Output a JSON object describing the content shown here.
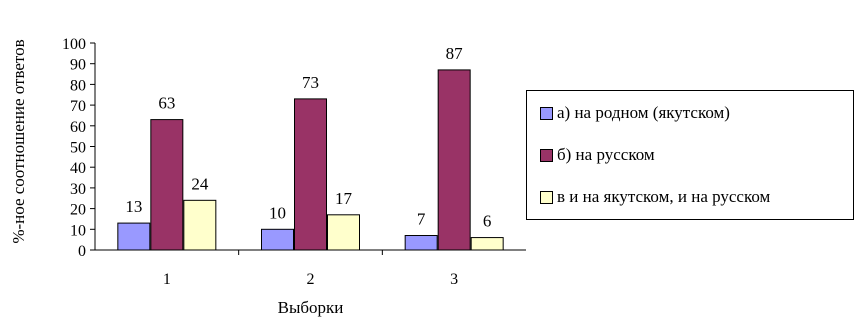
{
  "chart_data": {
    "type": "bar",
    "categories": [
      "1",
      "2",
      "3"
    ],
    "series": [
      {
        "name": "а) на родном (якутском)",
        "values": [
          13,
          10,
          7
        ],
        "color": "#9999ff"
      },
      {
        "name": "б) на русском",
        "values": [
          63,
          73,
          87
        ],
        "color": "#993366"
      },
      {
        "name": "в и на якутском, и на русском",
        "values": [
          24,
          17,
          6
        ],
        "color": "#ffffcc"
      }
    ],
    "title": "",
    "xlabel": "Выборки",
    "ylabel": "%-ное соотношение ответов",
    "ylim": [
      0,
      100
    ],
    "yticks": [
      "0",
      "10",
      "20",
      "30",
      "40",
      "50",
      "60",
      "70",
      "80",
      "90",
      "100"
    ],
    "grid": false,
    "legend_position": "right"
  }
}
